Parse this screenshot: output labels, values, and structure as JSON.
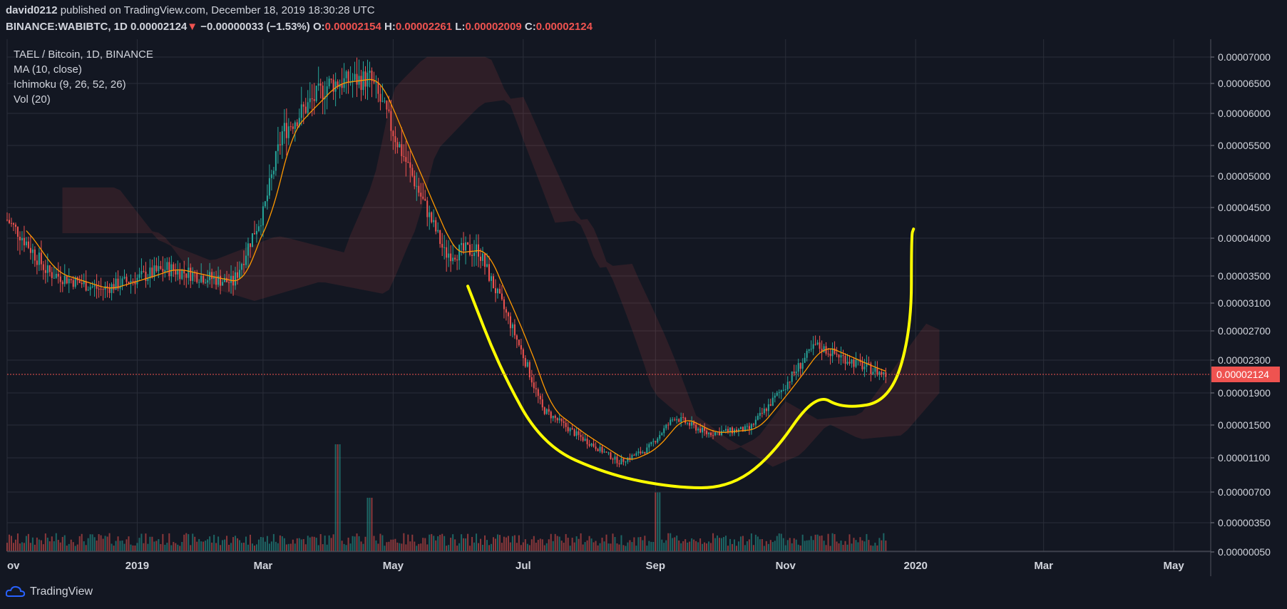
{
  "header": {
    "user": "david0212",
    "published": "published on TradingView.com, December 18, 2019 18:30:28 UTC",
    "symbol": "BINANCE:WABIBTC, 1D",
    "last": "0.00002124",
    "change": "−0.00000033 (−1.53%)",
    "o_label": "O:",
    "o_value": "0.00002154",
    "h_label": "H:",
    "h_value": "0.00002261",
    "l_label": "L:",
    "l_value": "0.00002009",
    "c_label": "C:",
    "c_value": "0.00002124"
  },
  "legend": {
    "pair": "TAEL / Bitcoin, 1D, BINANCE",
    "ma": "MA (10, close)",
    "ichimoku": "Ichimoku (9, 26, 52, 26)",
    "vol": "Vol (20)"
  },
  "footer": {
    "brand": "TradingView"
  },
  "colors": {
    "background": "#131722",
    "up": "#26a69a",
    "down": "#ef5350",
    "ma": "#ff9800",
    "annotation": "#ffff00",
    "price_tag": "#ef5350"
  },
  "chart_data": {
    "type": "candlestick",
    "symbol": "BINANCE:WABIBTC",
    "interval": "1D",
    "price_ticks": [
      "0.00007000",
      "0.00006500",
      "0.00006000",
      "0.00005500",
      "0.00005000",
      "0.00004500",
      "0.00004000",
      "0.00003500",
      "0.00003100",
      "0.00002700",
      "0.00002300",
      "0.00001900",
      "0.00001500",
      "0.00001100",
      "0.00000700",
      "0.00000350",
      "0.00000050"
    ],
    "last_price_label": "0.00002124",
    "last_price": 2.124e-05,
    "x_ticks": [
      "ov",
      "2019",
      "Mar",
      "May",
      "Jul",
      "Sep",
      "Nov",
      "2020",
      "Mar",
      "May"
    ],
    "x_range": [
      "2018-11-01",
      "2020-05-15"
    ],
    "price_path": [
      {
        "date": "2018-11-01",
        "close": 4.3e-05
      },
      {
        "date": "2018-11-20",
        "close": 3.55e-05
      },
      {
        "date": "2018-12-15",
        "close": 3.3e-05
      },
      {
        "date": "2019-01-15",
        "close": 3.6e-05
      },
      {
        "date": "2019-02-15",
        "close": 3.4e-05
      },
      {
        "date": "2019-03-01",
        "close": 4.4e-05
      },
      {
        "date": "2019-03-10",
        "close": 5.7e-05
      },
      {
        "date": "2019-04-01",
        "close": 6.5e-05
      },
      {
        "date": "2019-04-20",
        "close": 6.6e-05
      },
      {
        "date": "2019-05-10",
        "close": 5e-05
      },
      {
        "date": "2019-05-25",
        "close": 3.8e-05
      },
      {
        "date": "2019-06-10",
        "close": 3.85e-05
      },
      {
        "date": "2019-06-25",
        "close": 2.8e-05
      },
      {
        "date": "2019-07-10",
        "close": 1.7e-05
      },
      {
        "date": "2019-07-25",
        "close": 1.4e-05
      },
      {
        "date": "2019-08-15",
        "close": 1.05e-05
      },
      {
        "date": "2019-08-28",
        "close": 1.2e-05
      },
      {
        "date": "2019-09-10",
        "close": 1.6e-05
      },
      {
        "date": "2019-09-25",
        "close": 1.4e-05
      },
      {
        "date": "2019-10-15",
        "close": 1.45e-05
      },
      {
        "date": "2019-11-01",
        "close": 2e-05
      },
      {
        "date": "2019-11-15",
        "close": 2.5e-05
      },
      {
        "date": "2019-12-05",
        "close": 2.25e-05
      },
      {
        "date": "2019-12-18",
        "close": 2.12e-05
      }
    ],
    "volume_spikes": [
      {
        "date": "2019-04-05",
        "relative": 1.0
      },
      {
        "date": "2019-04-20",
        "relative": 0.5
      },
      {
        "date": "2019-09-02",
        "relative": 0.55
      }
    ]
  }
}
